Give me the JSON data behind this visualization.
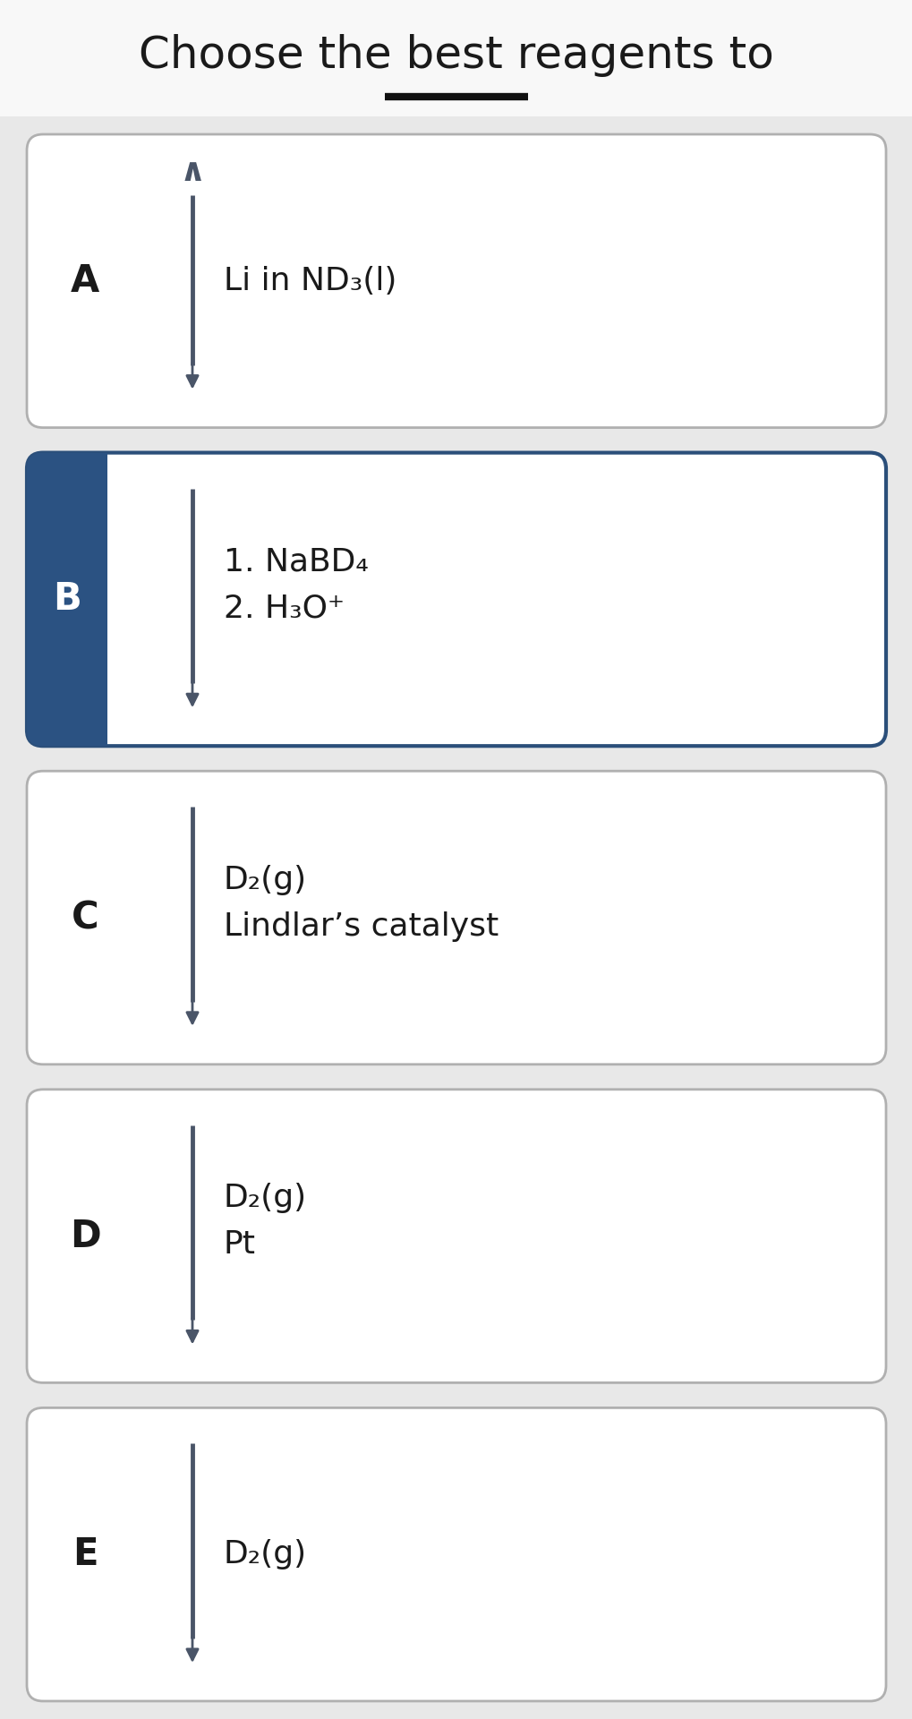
{
  "title": "Choose the best reagents to",
  "title_fontsize": 36,
  "background_color": "#e8e8e8",
  "title_bg_color": "#f8f8f8",
  "options": [
    {
      "label": "A",
      "selected": false,
      "has_chevron": true,
      "lines": [
        "Li in ND₃(l)"
      ]
    },
    {
      "label": "B",
      "selected": true,
      "has_chevron": false,
      "lines": [
        "1. NaBD₄",
        "2. H₃O⁺"
      ]
    },
    {
      "label": "C",
      "selected": false,
      "has_chevron": false,
      "lines": [
        "D₂(g)",
        "Lindlar’s catalyst"
      ]
    },
    {
      "label": "D",
      "selected": false,
      "has_chevron": false,
      "lines": [
        "D₂(g)",
        "Pt"
      ]
    },
    {
      "label": "E",
      "selected": false,
      "has_chevron": false,
      "lines": [
        "D₂(g)"
      ]
    }
  ],
  "box_bg_color": "#ffffff",
  "box_border_color": "#b0b0b0",
  "selected_border_color": "#2b4f7a",
  "selected_sidebar_color": "#2b5282",
  "selected_label_color": "#ffffff",
  "unselected_label_color": "#1a1a1a",
  "arrow_color": "#4a5568",
  "text_color": "#1a1a1a",
  "underline_color": "#111111",
  "chevron_color": "#4a5568"
}
